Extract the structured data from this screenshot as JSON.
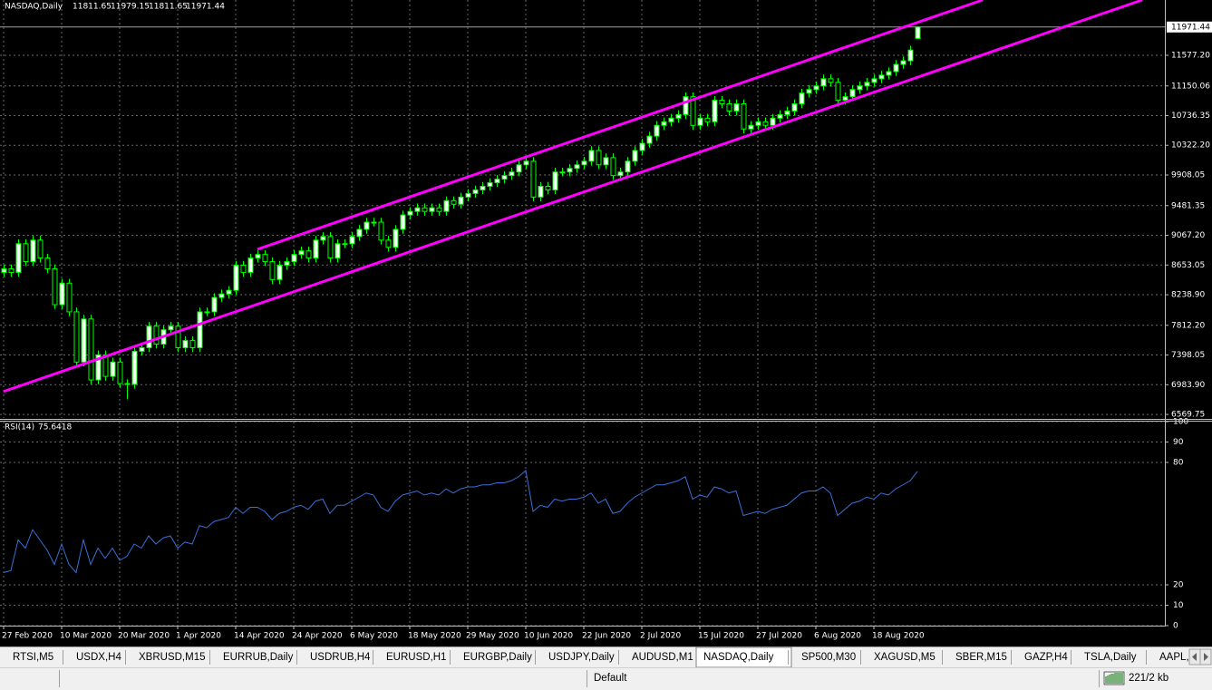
{
  "chart_data": [
    {
      "type": "candlestick",
      "title": "NASDAQ,Daily",
      "categories": [
        "27 Feb 2020",
        null,
        null,
        null,
        null,
        null,
        null,
        null,
        "10 Mar 2020",
        null,
        null,
        null,
        null,
        null,
        null,
        null,
        "20 Mar 2020",
        null,
        null,
        null,
        null,
        null,
        null,
        null,
        "1 Apr 2020",
        null,
        null,
        null,
        null,
        null,
        null,
        null,
        "14 Apr 2020",
        null,
        null,
        null,
        null,
        null,
        null,
        null,
        "24 Apr 2020",
        null,
        null,
        null,
        null,
        null,
        null,
        null,
        "6 May 2020",
        null,
        null,
        null,
        null,
        null,
        null,
        null,
        "18 May 2020",
        null,
        null,
        null,
        null,
        null,
        null,
        null,
        "29 May 2020",
        null,
        null,
        null,
        null,
        null,
        null,
        null,
        "10 Jun 2020",
        null,
        null,
        null,
        null,
        null,
        null,
        null,
        "22 Jun 2020",
        null,
        null,
        null,
        null,
        null,
        null,
        null,
        "2 Jul 2020",
        null,
        null,
        null,
        null,
        null,
        null,
        null,
        "15 Jul 2020",
        null,
        null,
        null,
        null,
        null,
        null,
        null,
        "27 Jul 2020",
        null,
        null,
        null,
        null,
        null,
        null,
        null,
        "6 Aug 2020",
        null,
        null,
        null,
        null,
        null,
        null,
        null,
        "18 Aug 2020",
        null,
        null,
        null,
        null,
        null,
        null
      ],
      "open": [
        8550,
        8600,
        8550,
        8950,
        8700,
        9000,
        8750,
        8600,
        8100,
        8400,
        8000,
        7300,
        7900,
        7050,
        7400,
        7100,
        7300,
        7000,
        6990,
        7450,
        7500,
        7800,
        7550,
        7750,
        7800,
        7500,
        7600,
        7500,
        8000,
        8000,
        8200,
        8250,
        8300,
        8650,
        8550,
        8750,
        8800,
        8700,
        8450,
        8650,
        8700,
        8800,
        8850,
        8750,
        9000,
        9050,
        8750,
        8950,
        8950,
        9050,
        9150,
        9250,
        9250,
        9000,
        8900,
        9150,
        9350,
        9400,
        9450,
        9400,
        9450,
        9400,
        9550,
        9500,
        9600,
        9650,
        9700,
        9750,
        9800,
        9850,
        9900,
        9950,
        10050,
        10100,
        9600,
        9750,
        9700,
        9950,
        9950,
        10000,
        10050,
        10100,
        10250,
        10050,
        10150,
        9900,
        9950,
        10100,
        10250,
        10350,
        10450,
        10600,
        10650,
        10700,
        10750,
        11000,
        10600,
        10700,
        10650,
        10950,
        10900,
        10800,
        10900,
        10550,
        10600,
        10650,
        10600,
        10700,
        10750,
        10800,
        10900,
        11050,
        11100,
        11150,
        11250,
        11200,
        10950,
        11000,
        11100,
        11150,
        11200,
        11250,
        11300,
        11350,
        11450,
        11500,
        11811.65
      ],
      "high": [
        8660,
        8660,
        9010,
        9010,
        9060,
        9060,
        8810,
        8660,
        8460,
        8460,
        8060,
        7960,
        7960,
        7460,
        7460,
        7360,
        7360,
        7060,
        7510,
        7560,
        7860,
        7860,
        7810,
        7860,
        7860,
        7660,
        7660,
        8060,
        8060,
        8260,
        8310,
        8360,
        8710,
        8710,
        8810,
        8860,
        8860,
        8760,
        8710,
        8760,
        8860,
        8910,
        8910,
        9060,
        9110,
        9110,
        9010,
        9010,
        9110,
        9210,
        9310,
        9310,
        9310,
        9060,
        9210,
        9410,
        9460,
        9510,
        9510,
        9510,
        9510,
        9610,
        9610,
        9660,
        9710,
        9760,
        9810,
        9860,
        9910,
        9960,
        10010,
        10110,
        10160,
        10160,
        9810,
        9810,
        10010,
        10010,
        10060,
        10110,
        10160,
        10310,
        10310,
        10210,
        10210,
        10010,
        10160,
        10310,
        10410,
        10510,
        10660,
        10710,
        10760,
        10810,
        11060,
        11060,
        10760,
        10760,
        11010,
        11010,
        10960,
        10960,
        10960,
        10660,
        10710,
        10710,
        10760,
        10810,
        10860,
        10960,
        11110,
        11160,
        11210,
        11310,
        11310,
        11260,
        11060,
        11160,
        11210,
        11260,
        11310,
        11360,
        11410,
        11510,
        11560,
        11710,
        11979.15
      ],
      "low": [
        8490,
        8490,
        8490,
        8640,
        8640,
        8690,
        8540,
        8040,
        8040,
        7940,
        7240,
        7240,
        6990,
        6990,
        7040,
        7040,
        6940,
        6780,
        6930,
        7390,
        7440,
        7490,
        7490,
        7690,
        7440,
        7440,
        7440,
        7440,
        7940,
        7940,
        8140,
        8190,
        8240,
        8490,
        8490,
        8690,
        8640,
        8390,
        8390,
        8590,
        8640,
        8740,
        8690,
        8690,
        8940,
        8690,
        8690,
        8890,
        8890,
        8990,
        9090,
        9190,
        8940,
        8840,
        8840,
        9090,
        9290,
        9340,
        9340,
        9340,
        9340,
        9340,
        9440,
        9440,
        9540,
        9590,
        9640,
        9690,
        9740,
        9790,
        9840,
        9890,
        9990,
        9540,
        9540,
        9640,
        9640,
        9890,
        9890,
        9940,
        9990,
        10040,
        9990,
        9990,
        9840,
        9840,
        9890,
        10040,
        10190,
        10290,
        10390,
        10540,
        10590,
        10640,
        10690,
        10540,
        10540,
        10590,
        10590,
        10840,
        10740,
        10740,
        10490,
        10490,
        10540,
        10540,
        10540,
        10640,
        10690,
        10740,
        10840,
        10990,
        11040,
        11090,
        11140,
        10890,
        10890,
        10940,
        11040,
        11090,
        11140,
        11190,
        11240,
        11290,
        11390,
        11440,
        11811.65
      ],
      "close": [
        8600,
        8550,
        8950,
        8700,
        9000,
        8750,
        8600,
        8100,
        8400,
        8000,
        7300,
        7900,
        7050,
        7400,
        7100,
        7300,
        7000,
        6990,
        7450,
        7500,
        7800,
        7550,
        7750,
        7800,
        7500,
        7600,
        7500,
        8000,
        8000,
        8200,
        8250,
        8300,
        8650,
        8550,
        8750,
        8800,
        8700,
        8450,
        8650,
        8700,
        8800,
        8850,
        8750,
        9000,
        9050,
        8750,
        8950,
        8950,
        9050,
        9150,
        9250,
        9250,
        9000,
        8900,
        9150,
        9350,
        9400,
        9450,
        9400,
        9450,
        9400,
        9550,
        9500,
        9600,
        9650,
        9700,
        9750,
        9800,
        9850,
        9900,
        9950,
        10050,
        10100,
        9600,
        9750,
        9700,
        9950,
        9950,
        10000,
        10050,
        10100,
        10250,
        10050,
        10150,
        9900,
        9950,
        10100,
        10250,
        10350,
        10450,
        10600,
        10650,
        10700,
        10750,
        11000,
        10600,
        10700,
        10650,
        10950,
        10900,
        10800,
        10900,
        10550,
        10600,
        10650,
        10600,
        10700,
        10750,
        10800,
        10900,
        11050,
        11100,
        11150,
        11250,
        11200,
        10950,
        11000,
        11100,
        11150,
        11200,
        11250,
        11300,
        11350,
        11450,
        11500,
        11650,
        11971.44
      ],
      "up_color": "#ffffff",
      "down_color": "#000000",
      "wick_color": "#00ff00",
      "ylim": [
        6520,
        12348
      ],
      "yticks": [
        {
          "value": 11577.2,
          "label": "11577.20"
        },
        11150.06,
        10736.35,
        {
          "value": 10322.2,
          "label": "10322.20"
        },
        9908.05,
        9481.35,
        {
          "value": 9067.2,
          "label": "9067.20"
        },
        8653.05,
        {
          "value": 8238.9,
          "label": "8238.90"
        },
        {
          "value": 7812.2,
          "label": "7812.20"
        },
        7398.05,
        {
          "value": 6983.9,
          "label": "6983.90"
        },
        6569.75
      ],
      "grid": true,
      "trendlines": [
        {
          "color": "#ff00ff",
          "points": [
            [
              0,
              6890
            ],
            [
              157,
              12348
            ]
          ]
        },
        {
          "color": "#ff00ff",
          "points": [
            [
              35,
              8872
            ],
            [
              135,
              12348
            ]
          ]
        }
      ]
    },
    {
      "type": "line",
      "title": "RSI(14)",
      "values": [
        26,
        27,
        42,
        38,
        47,
        42,
        37,
        30,
        40,
        30,
        26,
        42,
        30,
        38,
        33,
        38,
        32,
        34,
        40,
        38,
        44,
        40,
        43,
        44,
        38,
        41,
        40,
        49,
        48,
        51,
        52,
        53,
        58,
        55,
        58,
        58,
        56,
        52,
        55,
        56,
        58,
        59,
        57,
        61,
        62,
        55,
        59,
        59,
        61,
        63,
        65,
        64,
        58,
        56,
        61,
        64,
        65,
        66,
        64,
        65,
        64,
        67,
        65,
        67,
        68,
        68,
        69,
        69,
        70,
        70,
        71,
        73,
        76,
        56,
        59,
        58,
        62,
        61,
        62,
        62,
        63,
        65,
        60,
        62,
        55,
        56,
        60,
        63,
        65,
        67,
        69,
        69,
        70,
        71,
        73,
        62,
        64,
        63,
        68,
        67,
        65,
        66,
        54,
        55,
        56,
        55,
        57,
        58,
        59,
        62,
        65,
        66,
        66,
        68,
        65,
        54,
        57,
        60,
        61,
        63,
        62,
        65,
        64,
        67,
        69,
        71,
        75.6418
      ],
      "color": "#3a6fd8",
      "ylim": [
        0,
        100
      ],
      "yticks": [
        100,
        90,
        80,
        20,
        10,
        0
      ],
      "grid": true
    }
  ],
  "tabs": {
    "items": [
      "RTSI,M5",
      "USDX,H4",
      "XBRUSD,M15",
      "EURRUB,Daily",
      "USDRUB,H4",
      "EURUSD,H1",
      "EURGBP,Daily",
      "USDJPY,Daily",
      "AUDUSD,M1",
      "NASDAQ,Daily",
      "SP500,M30",
      "XAGUSD,M5",
      "SBER,M15",
      "GAZP,H4",
      "TSLA,Daily",
      "AAPL,"
    ],
    "active": 9
  },
  "status": {
    "profile": "Default",
    "traffic": "221/2 kb"
  }
}
